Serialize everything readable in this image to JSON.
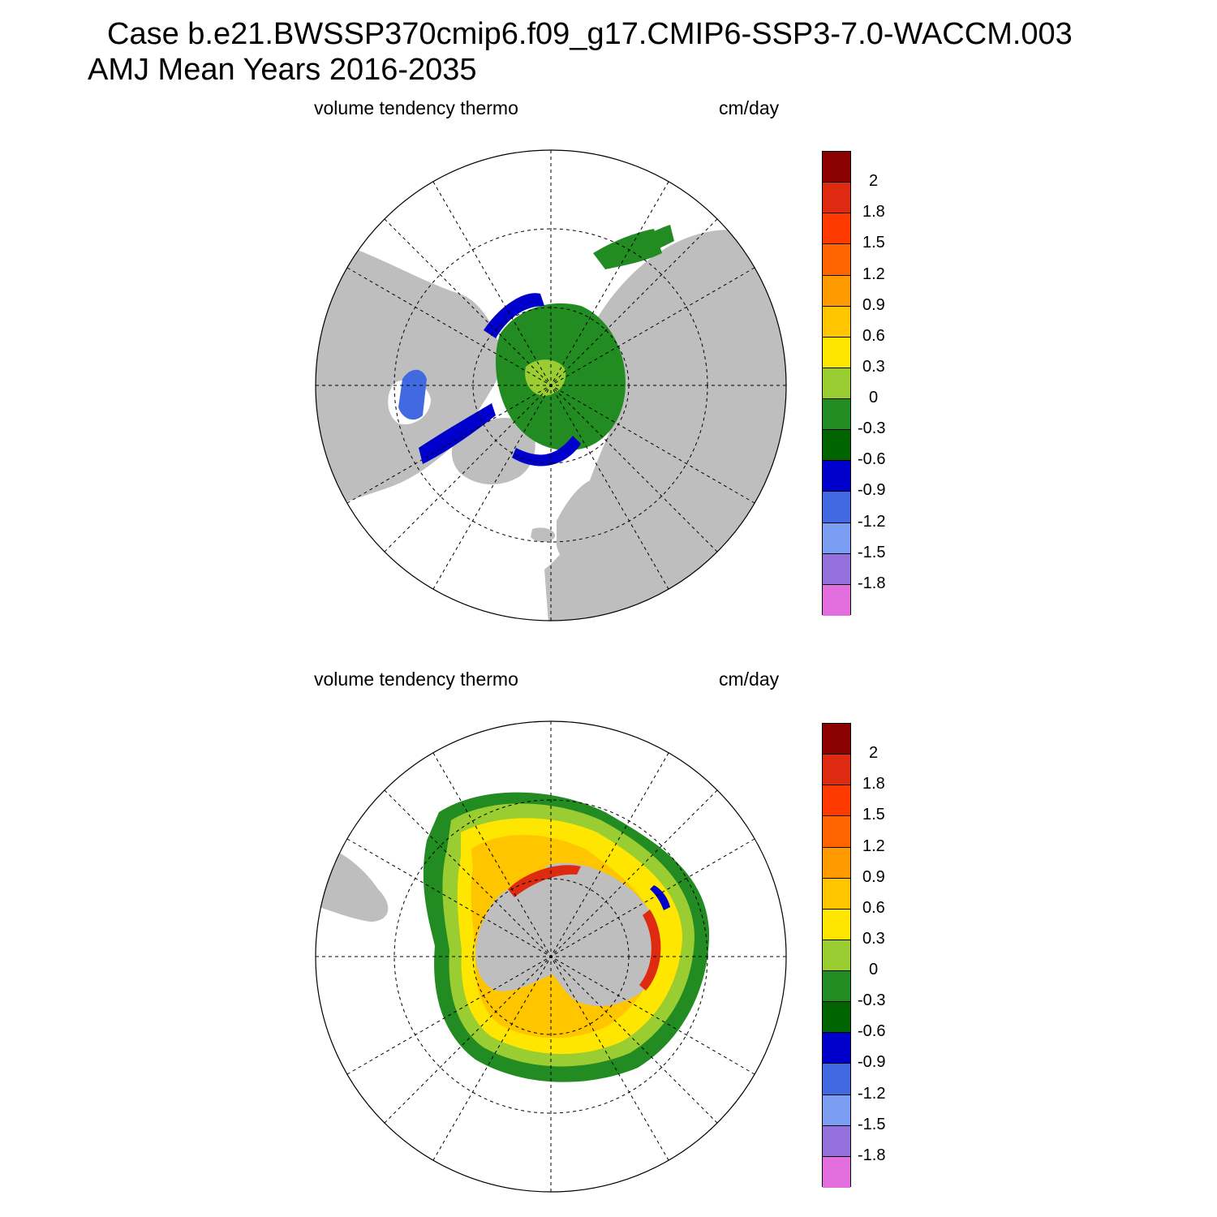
{
  "title": {
    "line1": "Case b.e21.BWSSP370cmip6.f09_g17.CMIP6-SSP3-7.0-WACCM.003",
    "line2": "AMJ Mean   Years 2016-2035"
  },
  "panels": [
    {
      "left_label": "volume tendency thermo",
      "right_label": "cm/day",
      "hemisphere": "north"
    },
    {
      "left_label": "volume tendency thermo",
      "right_label": "cm/day",
      "hemisphere": "south"
    }
  ],
  "colorbar": {
    "levels": [
      "2",
      "1.8",
      "1.5",
      "1.2",
      "0.9",
      "0.6",
      "0.3",
      "0",
      "-0.3",
      "-0.6",
      "-0.9",
      "-1.2",
      "-1.5",
      "-1.8"
    ],
    "colors": [
      "#8b0000",
      "#dd2a10",
      "#ff3a00",
      "#ff6400",
      "#ff9a00",
      "#ffc600",
      "#ffe600",
      "#9acd32",
      "#228b22",
      "#006400",
      "#0000cd",
      "#4169e1",
      "#7b9ef3",
      "#9370db",
      "#e36fde"
    ]
  },
  "colors": {
    "land": "#bebebe",
    "ocean": "#ffffff",
    "grid": "#000000"
  }
}
